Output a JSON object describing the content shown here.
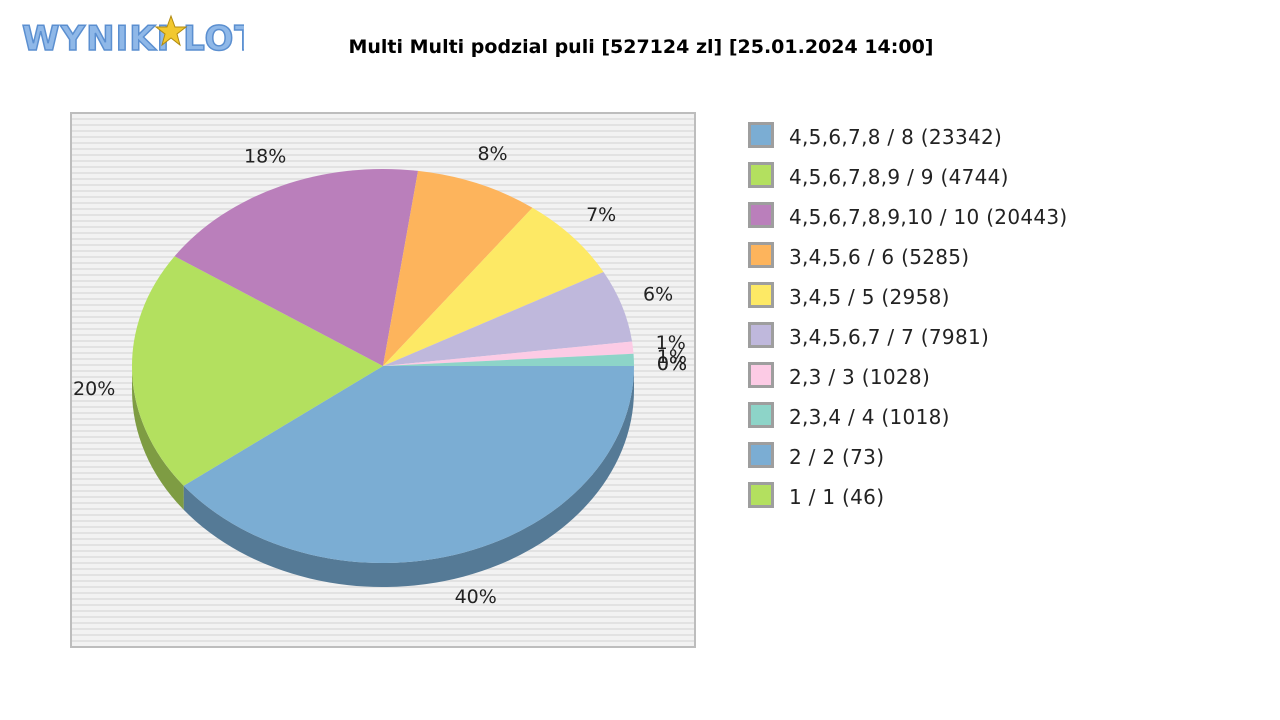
{
  "logo": {
    "text": "WYNIKI LOTTO",
    "colors": {
      "fill": "#8fb8e8",
      "outline": "#5b8fd0",
      "star": "#f2c830"
    }
  },
  "chart_data": {
    "type": "pie",
    "title": "Multi Multi podzial puli [527124 zl] [25.01.2024 14:00]",
    "slices": [
      {
        "label": "4,5,6,7,8 / 8 (23342)",
        "value": 40,
        "pct_label": "40%",
        "color": "#7badd3",
        "dark": "#557a96"
      },
      {
        "label": "4,5,6,7,8,9 / 9 (4744)",
        "value": 20,
        "pct_label": "20%",
        "color": "#b3e05f",
        "dark": "#7e9c43"
      },
      {
        "label": "4,5,6,7,8,9,10 / 10 (20443)",
        "value": 18,
        "pct_label": "18%",
        "color": "#ba7fbb",
        "dark": "#835a84"
      },
      {
        "label": "3,4,5,6 / 6 (5285)",
        "value": 8,
        "pct_label": "8%",
        "color": "#fdb45c",
        "dark": "#b17e41"
      },
      {
        "label": "3,4,5 / 5 (2958)",
        "value": 7,
        "pct_label": "7%",
        "color": "#fde965",
        "dark": "#b1a347"
      },
      {
        "label": "3,4,5,6,7 / 7 (7981)",
        "value": 6,
        "pct_label": "6%",
        "color": "#bfb8dc",
        "dark": "#86819a"
      },
      {
        "label": "2,3 / 3 (1028)",
        "value": 1,
        "pct_label": "1%",
        "color": "#fccbe5",
        "dark": "#b08ea0"
      },
      {
        "label": "2,3,4 / 4 (1018)",
        "value": 1,
        "pct_label": "1%",
        "color": "#8dd4c8",
        "dark": "#63948c"
      },
      {
        "label": "2 / 2 (73)",
        "value": 0,
        "pct_label": "0%",
        "color": "#7badd3",
        "dark": "#557a96"
      },
      {
        "label": "1 / 1 (46)",
        "value": 0,
        "pct_label": "0%",
        "color": "#b3e05f",
        "dark": "#7e9c43"
      }
    ],
    "legend_position": "right"
  }
}
